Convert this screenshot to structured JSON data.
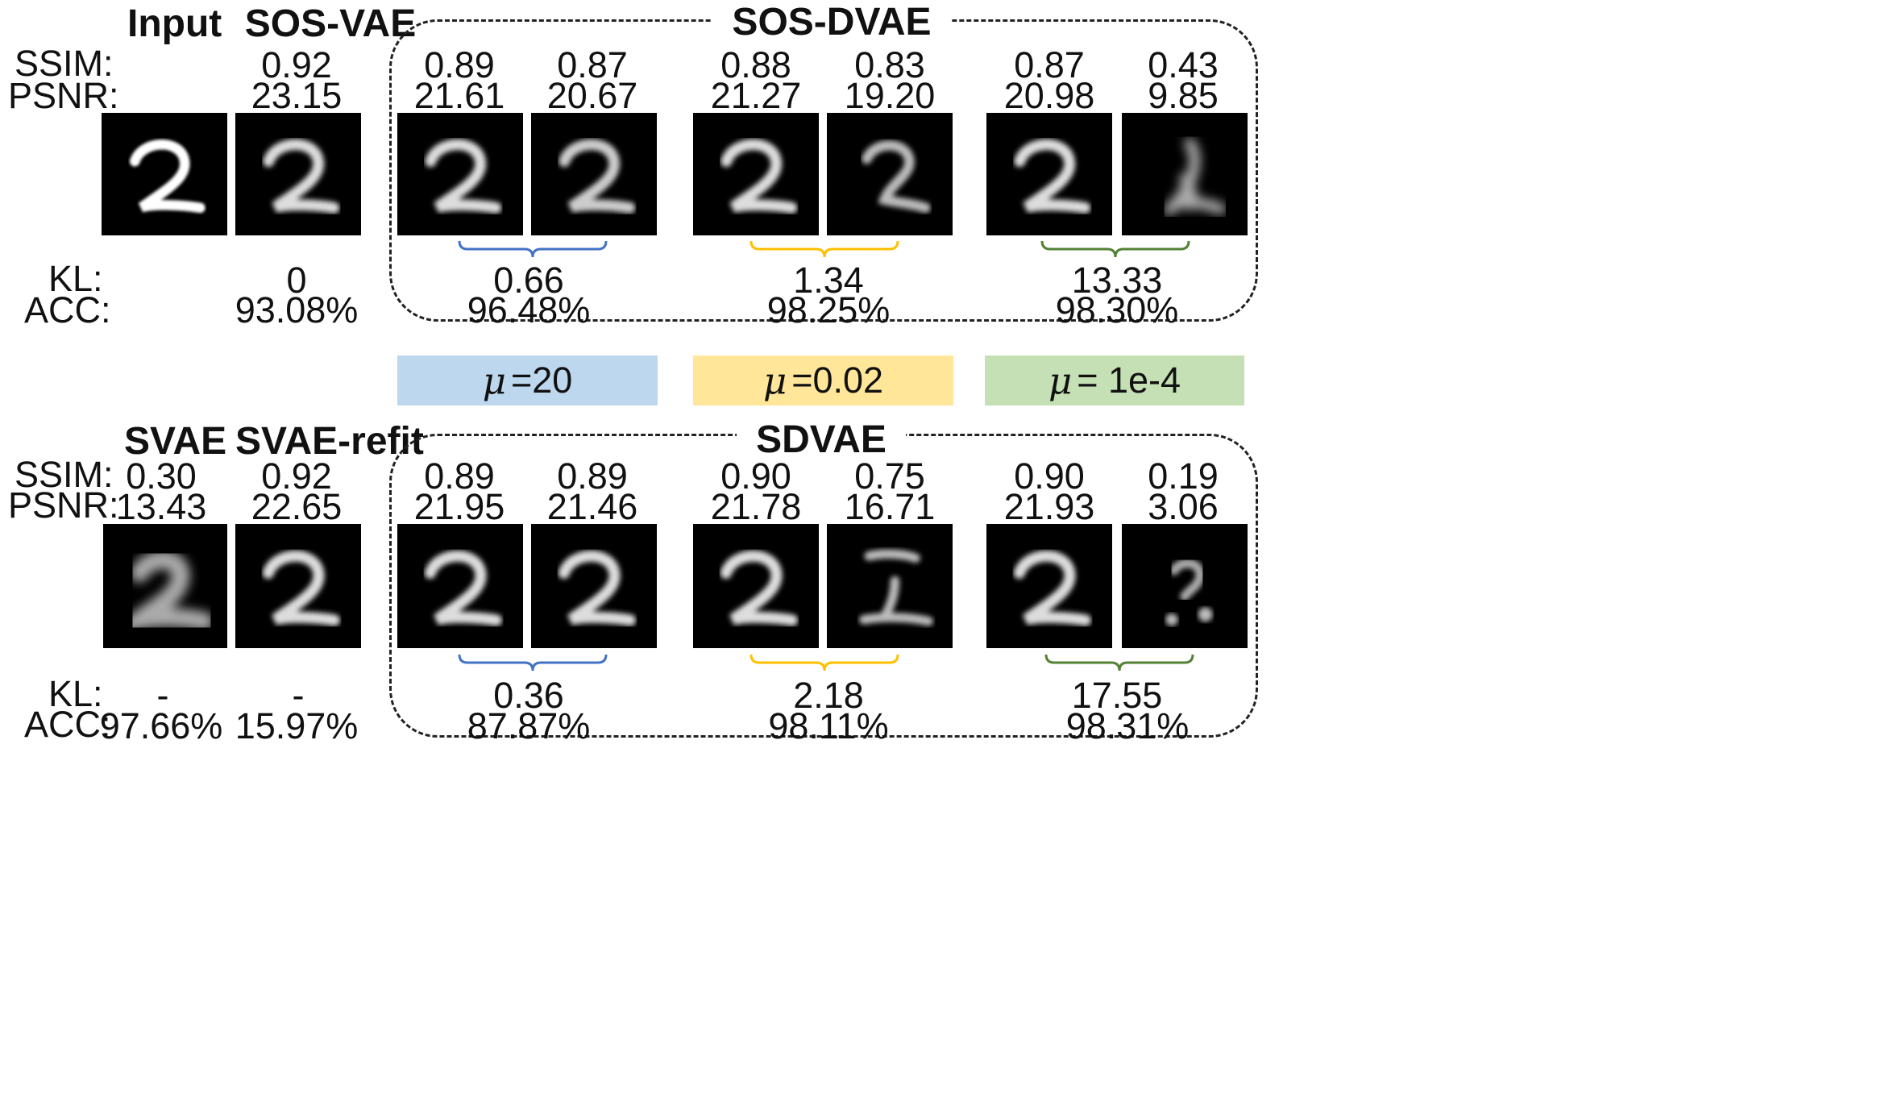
{
  "row_labels": {
    "ssim": "SSIM:",
    "psnr": "PSNR:",
    "kl": "KL:",
    "acc": "ACC:"
  },
  "top": {
    "headers": {
      "input": "Input",
      "sos_vae": "SOS-VAE",
      "group": "SOS-DVAE"
    },
    "sos_vae": {
      "ssim": "0.92",
      "psnr": "23.15",
      "kl": "0",
      "acc": "93.08%"
    },
    "pairs": [
      {
        "ssim": [
          "0.89",
          "0.87"
        ],
        "psnr": [
          "21.61",
          "20.67"
        ],
        "kl": "0.66",
        "acc": "96.48%"
      },
      {
        "ssim": [
          "0.88",
          "0.83"
        ],
        "psnr": [
          "21.27",
          "19.20"
        ],
        "kl": "1.34",
        "acc": "98.25%"
      },
      {
        "ssim": [
          "0.87",
          "0.43"
        ],
        "psnr": [
          "20.98",
          "9.85"
        ],
        "kl": "13.33",
        "acc": "98.30%"
      }
    ]
  },
  "mu": [
    {
      "symbol": "μ",
      "text": "=20",
      "color": "#bdd7ee"
    },
    {
      "symbol": "μ",
      "text": "=0.02",
      "color": "#ffe699"
    },
    {
      "symbol": "μ",
      "text": "= 1e-4",
      "color": "#c5e0b4"
    }
  ],
  "bottom": {
    "headers": {
      "svae": "SVAE",
      "svae_refit": "SVAE-refit",
      "group": "SDVAE"
    },
    "svae": {
      "ssim": "0.30",
      "psnr": "13.43",
      "kl": "-",
      "acc": "97.66%"
    },
    "svae_refit": {
      "ssim": "0.92",
      "psnr": "22.65",
      "kl": "-",
      "acc": "15.97%"
    },
    "pairs": [
      {
        "ssim": [
          "0.89",
          "0.89"
        ],
        "psnr": [
          "21.95",
          "21.46"
        ],
        "kl": "0.36",
        "acc": "87.87%"
      },
      {
        "ssim": [
          "0.90",
          "0.75"
        ],
        "psnr": [
          "21.78",
          "16.71"
        ],
        "kl": "2.18",
        "acc": "98.11%"
      },
      {
        "ssim": [
          "0.90",
          "0.19"
        ],
        "psnr": [
          "21.93",
          "3.06"
        ],
        "kl": "17.55",
        "acc": "98.31%"
      }
    ]
  },
  "brace_colors": [
    "#4472c4",
    "#ffc000",
    "#548235"
  ]
}
